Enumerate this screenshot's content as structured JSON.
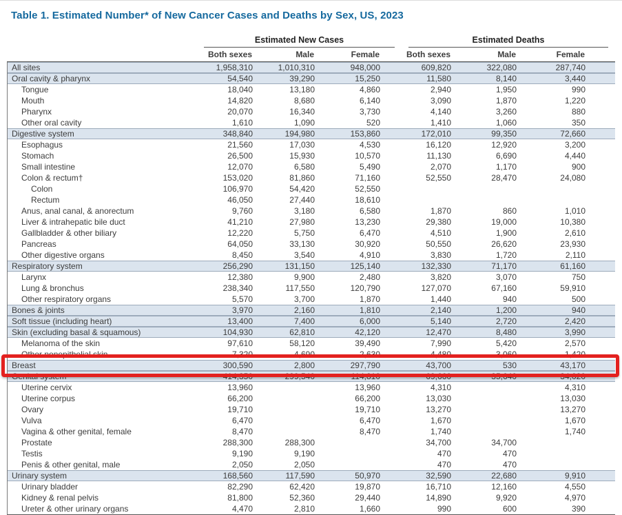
{
  "page": {
    "title": "Table 1. Estimated Number* of New Cancer Cases and Deaths by Sex, US, 2023"
  },
  "colors": {
    "title": "#15699E",
    "text": "#3C3C3C",
    "section_row_bg": "#DBE4EE",
    "section_row_line": "#9DABBB"
  },
  "table": {
    "column_groups": [
      {
        "label": "Estimated New Cases"
      },
      {
        "label": "Estimated Deaths"
      }
    ],
    "columns": [
      "Both sexes",
      "Male",
      "Female",
      "Both sexes",
      "Male",
      "Female"
    ],
    "highlight": {
      "row_label": "Breast",
      "border_color": "#E3211F"
    },
    "rows": [
      {
        "label": "All sites",
        "indent": 0,
        "section": true,
        "values": [
          "1,958,310",
          "1,010,310",
          "948,000",
          "609,820",
          "322,080",
          "287,740"
        ]
      },
      {
        "label": "Oral cavity & pharynx",
        "indent": 0,
        "section": true,
        "values": [
          "54,540",
          "39,290",
          "15,250",
          "11,580",
          "8,140",
          "3,440"
        ]
      },
      {
        "label": "Tongue",
        "indent": 1,
        "section": false,
        "values": [
          "18,040",
          "13,180",
          "4,860",
          "2,940",
          "1,950",
          "990"
        ]
      },
      {
        "label": "Mouth",
        "indent": 1,
        "section": false,
        "values": [
          "14,820",
          "8,680",
          "6,140",
          "3,090",
          "1,870",
          "1,220"
        ]
      },
      {
        "label": "Pharynx",
        "indent": 1,
        "section": false,
        "values": [
          "20,070",
          "16,340",
          "3,730",
          "4,140",
          "3,260",
          "880"
        ]
      },
      {
        "label": "Other oral cavity",
        "indent": 1,
        "section": false,
        "values": [
          "1,610",
          "1,090",
          "520",
          "1,410",
          "1,060",
          "350"
        ]
      },
      {
        "label": "Digestive system",
        "indent": 0,
        "section": true,
        "values": [
          "348,840",
          "194,980",
          "153,860",
          "172,010",
          "99,350",
          "72,660"
        ]
      },
      {
        "label": "Esophagus",
        "indent": 1,
        "section": false,
        "values": [
          "21,560",
          "17,030",
          "4,530",
          "16,120",
          "12,920",
          "3,200"
        ]
      },
      {
        "label": "Stomach",
        "indent": 1,
        "section": false,
        "values": [
          "26,500",
          "15,930",
          "10,570",
          "11,130",
          "6,690",
          "4,440"
        ]
      },
      {
        "label": "Small intestine",
        "indent": 1,
        "section": false,
        "values": [
          "12,070",
          "6,580",
          "5,490",
          "2,070",
          "1,170",
          "900"
        ]
      },
      {
        "label": "Colon & rectum†",
        "indent": 1,
        "section": false,
        "values": [
          "153,020",
          "81,860",
          "71,160",
          "52,550",
          "28,470",
          "24,080"
        ]
      },
      {
        "label": "Colon",
        "indent": 2,
        "section": false,
        "values": [
          "106,970",
          "54,420",
          "52,550",
          "",
          "",
          ""
        ]
      },
      {
        "label": "Rectum",
        "indent": 2,
        "section": false,
        "values": [
          "46,050",
          "27,440",
          "18,610",
          "",
          "",
          ""
        ]
      },
      {
        "label": "Anus, anal canal, & anorectum",
        "indent": 1,
        "section": false,
        "values": [
          "9,760",
          "3,180",
          "6,580",
          "1,870",
          "860",
          "1,010"
        ]
      },
      {
        "label": "Liver & intrahepatic bile duct",
        "indent": 1,
        "section": false,
        "values": [
          "41,210",
          "27,980",
          "13,230",
          "29,380",
          "19,000",
          "10,380"
        ]
      },
      {
        "label": "Gallbladder & other biliary",
        "indent": 1,
        "section": false,
        "values": [
          "12,220",
          "5,750",
          "6,470",
          "4,510",
          "1,900",
          "2,610"
        ]
      },
      {
        "label": "Pancreas",
        "indent": 1,
        "section": false,
        "values": [
          "64,050",
          "33,130",
          "30,920",
          "50,550",
          "26,620",
          "23,930"
        ]
      },
      {
        "label": "Other digestive organs",
        "indent": 1,
        "section": false,
        "values": [
          "8,450",
          "3,540",
          "4,910",
          "3,830",
          "1,720",
          "2,110"
        ]
      },
      {
        "label": "Respiratory system",
        "indent": 0,
        "section": true,
        "values": [
          "256,290",
          "131,150",
          "125,140",
          "132,330",
          "71,170",
          "61,160"
        ]
      },
      {
        "label": "Larynx",
        "indent": 1,
        "section": false,
        "values": [
          "12,380",
          "9,900",
          "2,480",
          "3,820",
          "3,070",
          "750"
        ]
      },
      {
        "label": "Lung & bronchus",
        "indent": 1,
        "section": false,
        "values": [
          "238,340",
          "117,550",
          "120,790",
          "127,070",
          "67,160",
          "59,910"
        ]
      },
      {
        "label": "Other respiratory organs",
        "indent": 1,
        "section": false,
        "values": [
          "5,570",
          "3,700",
          "1,870",
          "1,440",
          "940",
          "500"
        ]
      },
      {
        "label": "Bones & joints",
        "indent": 0,
        "section": true,
        "values": [
          "3,970",
          "2,160",
          "1,810",
          "2,140",
          "1,200",
          "940"
        ]
      },
      {
        "label": "Soft tissue (including heart)",
        "indent": 0,
        "section": true,
        "values": [
          "13,400",
          "7,400",
          "6,000",
          "5,140",
          "2,720",
          "2,420"
        ]
      },
      {
        "label": "Skin (excluding basal & squamous)",
        "indent": 0,
        "section": true,
        "values": [
          "104,930",
          "62,810",
          "42,120",
          "12,470",
          "8,480",
          "3,990"
        ]
      },
      {
        "label": "Melanoma of the skin",
        "indent": 1,
        "section": false,
        "values": [
          "97,610",
          "58,120",
          "39,490",
          "7,990",
          "5,420",
          "2,570"
        ]
      },
      {
        "label": "Other nonepithelial skin",
        "indent": 1,
        "section": false,
        "values": [
          "7,320",
          "4,690",
          "2,630",
          "4,480",
          "3,060",
          "1,420"
        ]
      },
      {
        "label": "Breast",
        "indent": 0,
        "section": true,
        "values": [
          "300,590",
          "2,800",
          "297,790",
          "43,700",
          "530",
          "43,170"
        ]
      },
      {
        "label": "Genital system",
        "indent": 0,
        "section": true,
        "values": [
          "414,350",
          "299,540",
          "114,810",
          "69,660",
          "35,640",
          "34,020"
        ]
      },
      {
        "label": "Uterine cervix",
        "indent": 1,
        "section": false,
        "values": [
          "13,960",
          "",
          "13,960",
          "4,310",
          "",
          "4,310"
        ]
      },
      {
        "label": "Uterine corpus",
        "indent": 1,
        "section": false,
        "values": [
          "66,200",
          "",
          "66,200",
          "13,030",
          "",
          "13,030"
        ]
      },
      {
        "label": "Ovary",
        "indent": 1,
        "section": false,
        "values": [
          "19,710",
          "",
          "19,710",
          "13,270",
          "",
          "13,270"
        ]
      },
      {
        "label": "Vulva",
        "indent": 1,
        "section": false,
        "values": [
          "6,470",
          "",
          "6,470",
          "1,670",
          "",
          "1,670"
        ]
      },
      {
        "label": "Vagina & other genital, female",
        "indent": 1,
        "section": false,
        "values": [
          "8,470",
          "",
          "8,470",
          "1,740",
          "",
          "1,740"
        ]
      },
      {
        "label": "Prostate",
        "indent": 1,
        "section": false,
        "values": [
          "288,300",
          "288,300",
          "",
          "34,700",
          "34,700",
          ""
        ]
      },
      {
        "label": "Testis",
        "indent": 1,
        "section": false,
        "values": [
          "9,190",
          "9,190",
          "",
          "470",
          "470",
          ""
        ]
      },
      {
        "label": "Penis & other genital, male",
        "indent": 1,
        "section": false,
        "values": [
          "2,050",
          "2,050",
          "",
          "470",
          "470",
          ""
        ]
      },
      {
        "label": "Urinary system",
        "indent": 0,
        "section": true,
        "values": [
          "168,560",
          "117,590",
          "50,970",
          "32,590",
          "22,680",
          "9,910"
        ]
      },
      {
        "label": "Urinary bladder",
        "indent": 1,
        "section": false,
        "values": [
          "82,290",
          "62,420",
          "19,870",
          "16,710",
          "12,160",
          "4,550"
        ]
      },
      {
        "label": "Kidney & renal pelvis",
        "indent": 1,
        "section": false,
        "values": [
          "81,800",
          "52,360",
          "29,440",
          "14,890",
          "9,920",
          "4,970"
        ]
      },
      {
        "label": "Ureter & other urinary organs",
        "indent": 1,
        "section": false,
        "values": [
          "4,470",
          "2,810",
          "1,660",
          "990",
          "600",
          "390"
        ]
      }
    ]
  }
}
